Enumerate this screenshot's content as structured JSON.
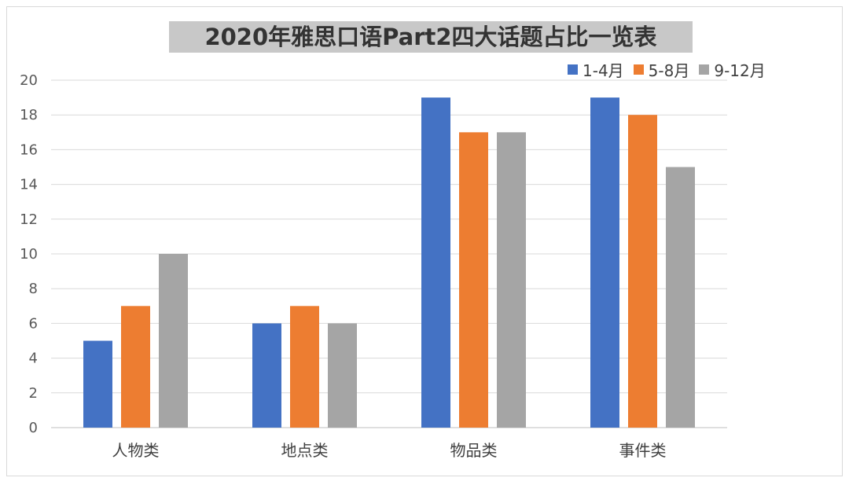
{
  "chart_data": {
    "type": "bar",
    "title": "2020年雅思口语Part2四大话题占比一览表",
    "categories": [
      "人物类",
      "地点类",
      "物品类",
      "事件类"
    ],
    "series": [
      {
        "name": "1-4月",
        "color": "#4472c4",
        "values": [
          5,
          6,
          19,
          19
        ]
      },
      {
        "name": "5-8月",
        "color": "#ed7d31",
        "values": [
          7,
          7,
          17,
          18
        ]
      },
      {
        "name": "9-12月",
        "color": "#a5a5a5",
        "values": [
          10,
          6,
          17,
          15
        ]
      }
    ],
    "ylim": [
      0,
      20
    ],
    "yticks": [
      "0",
      "2",
      "4",
      "6",
      "8",
      "10",
      "12",
      "14",
      "16",
      "18",
      "20"
    ],
    "grid": true,
    "legend": "top-right"
  }
}
